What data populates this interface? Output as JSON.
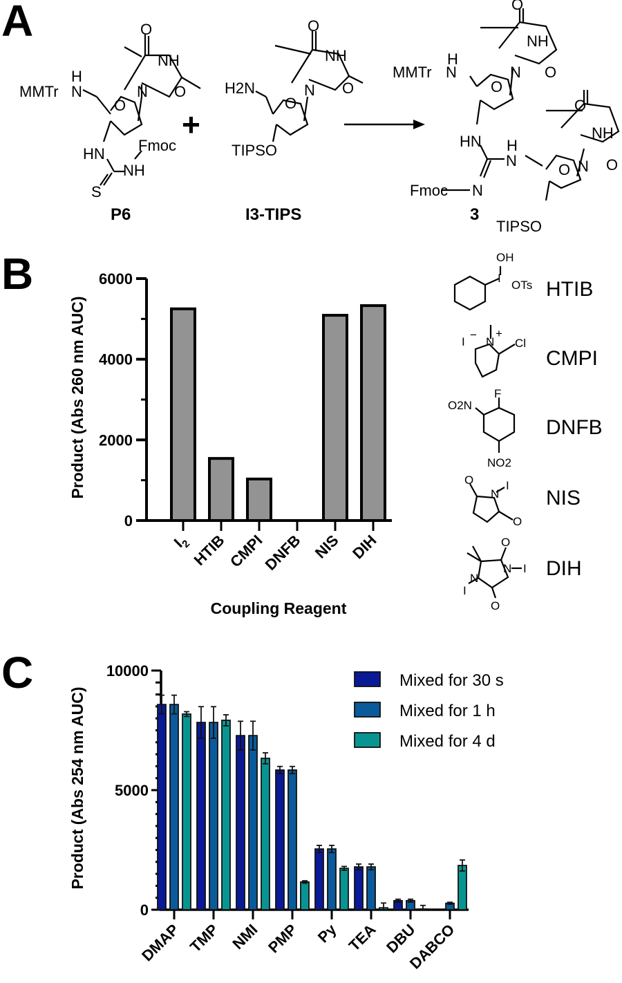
{
  "panels": {
    "A": {
      "letter": "A",
      "reactant1": {
        "label": "P6",
        "groups": {
          "mmtr": "MMTr",
          "nh_h": "H",
          "n": "N",
          "o": "O",
          "nh_thy": "NH",
          "o1": "O",
          "o2": "O",
          "n_thy": "N",
          "hn": "HN",
          "fmoc": "Fmoc",
          "nh": "NH",
          "s": "S"
        }
      },
      "plus": "+",
      "reactant2": {
        "label": "I3-TIPS",
        "groups": {
          "h2n": "H2N",
          "o": "O",
          "nh_thy": "NH",
          "o1": "O",
          "o2": "O",
          "n_thy": "N",
          "tipso": "TIPSO"
        }
      },
      "product": {
        "label": "3",
        "groups": {
          "mmtr": "MMTr",
          "h": "H",
          "n": "N",
          "o": "O",
          "nh_thy": "NH",
          "o1": "O",
          "o2": "O",
          "n_thy": "N",
          "hn": "HN",
          "nh2": "N",
          "h2": "H",
          "fmoc": "Fmoc",
          "n_imine": "N",
          "tipso": "TIPSO",
          "nh_thy2": "NH",
          "o3": "O",
          "o4": "O",
          "n_thy2": "N",
          "o_ring2": "O"
        }
      }
    },
    "B": {
      "letter": "B",
      "reagents": [
        {
          "name": "HTIB",
          "groups": [
            "OH",
            "I",
            "OTs"
          ]
        },
        {
          "name": "CMPI",
          "groups": [
            "I",
            "−",
            "N",
            "+",
            "Cl"
          ]
        },
        {
          "name": "DNFB",
          "groups": [
            "F",
            "O2N",
            "NO2"
          ]
        },
        {
          "name": "NIS",
          "groups": [
            "O",
            "N",
            "I",
            "O"
          ]
        },
        {
          "name": "DIH",
          "groups": [
            "O",
            "N",
            "I",
            "I",
            "N",
            "O"
          ]
        }
      ]
    },
    "C": {
      "letter": "C"
    }
  },
  "chart_data": [
    {
      "type": "bar",
      "panel": "B",
      "title": "",
      "xlabel": "Coupling Reagent",
      "ylabel": "Product (Abs 260 nm AUC)",
      "categories": [
        "I2",
        "HTIB",
        "CMPI",
        "DNFB",
        "NIS",
        "DIH"
      ],
      "category_display": [
        "I",
        "HTIB",
        "CMPI",
        "DNFB",
        "NIS",
        "DIH"
      ],
      "values": [
        5250,
        1540,
        1030,
        0,
        5090,
        5330
      ],
      "ylim": [
        0,
        6000
      ],
      "yticks": [
        0,
        2000,
        4000,
        6000
      ],
      "ytick_labels": [
        "0",
        "2000",
        "4000",
        "6000"
      ],
      "minor_ticks": [
        1000,
        3000,
        5000
      ],
      "bar_color": "#939393",
      "grid": false,
      "legend": null
    },
    {
      "type": "bar",
      "panel": "C",
      "title": "",
      "xlabel": "",
      "ylabel": "Product (Abs 254 nm AUC)",
      "categories": [
        "DMAP",
        "TMP",
        "NMI",
        "PMP",
        "Py",
        "TEA",
        "DBU",
        "DABCO"
      ],
      "series": [
        {
          "name": "Mixed for 30 s",
          "color": "#0a1a96",
          "values": [
            8580,
            7830,
            7280,
            5840,
            2540,
            1790,
            380,
            0
          ],
          "errors": [
            390,
            660,
            600,
            150,
            150,
            120,
            60,
            0
          ]
        },
        {
          "name": "Mixed for 1 h",
          "color": "#0b5a9b",
          "values": [
            8580,
            7830,
            7280,
            5840,
            2540,
            1790,
            380,
            270
          ],
          "errors": [
            390,
            660,
            600,
            150,
            150,
            120,
            60,
            40
          ]
        },
        {
          "name": "Mixed for 4 d",
          "color": "#089592",
          "values": [
            8180,
            7920,
            6330,
            1160,
            1730,
            80,
            30,
            1850
          ],
          "errors": [
            100,
            230,
            230,
            50,
            80,
            200,
            150,
            230
          ]
        }
      ],
      "ylim": [
        0,
        10000
      ],
      "yticks": [
        0,
        5000,
        10000
      ],
      "ytick_labels": [
        "0",
        "5000",
        "10000"
      ],
      "minor_tick_step": 500,
      "grid": false,
      "legend_position": "upper right"
    }
  ]
}
